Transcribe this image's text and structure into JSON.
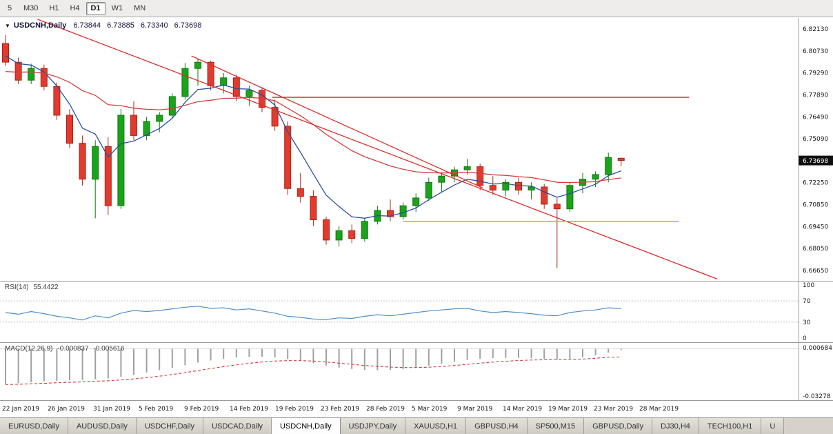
{
  "toolbar": {
    "timeframes": [
      {
        "label": "5"
      },
      {
        "label": "M30"
      },
      {
        "label": "H1"
      },
      {
        "label": "H4"
      },
      {
        "label": "D1",
        "active": true
      },
      {
        "label": "W1"
      },
      {
        "label": "MN"
      }
    ]
  },
  "chart": {
    "symbol_label": "USDCNH,Daily",
    "quote": {
      "open": "6.73844",
      "high": "6.73885",
      "low": "6.73340",
      "close": "6.73698"
    },
    "current_price": "6.73698",
    "price_scale": [
      "6.82130",
      "6.80730",
      "6.79290",
      "6.77890",
      "6.76490",
      "6.75090",
      "6.73690",
      "6.72250",
      "6.70850",
      "6.69450",
      "6.68050",
      "6.66650"
    ]
  },
  "rsi": {
    "label": "RSI(14)",
    "value": "55.4422",
    "levels": [
      "100",
      "70",
      "30",
      "0"
    ]
  },
  "macd": {
    "label": "MACD(12,26,9)",
    "value_macd": "-0.000837",
    "value_signal": "-0.005616",
    "scale_top": "0.000684",
    "scale_bottom": "-0.03278"
  },
  "tabbar": {
    "tabs": [
      {
        "label": "EURUSD,Daily"
      },
      {
        "label": "AUDUSD,Daily"
      },
      {
        "label": "USDCHF,Daily"
      },
      {
        "label": "USDCAD,Daily"
      },
      {
        "label": "USDCNH,Daily",
        "active": true
      },
      {
        "label": "USDJPY,Daily"
      },
      {
        "label": "XAUUSD,H1"
      },
      {
        "label": "GBPUSD,H4"
      },
      {
        "label": "SP500,M15"
      },
      {
        "label": "GBPUSD,Daily"
      },
      {
        "label": "DJ30,H4"
      },
      {
        "label": "TECH100,H1"
      },
      {
        "label": "U"
      }
    ]
  },
  "chart_data": {
    "type": "candlestick",
    "symbol": "USDCNH",
    "timeframe": "Daily",
    "y_range": [
      6.6665,
      6.8213
    ],
    "x_labels": [
      "22 Jan 2019",
      "26 Jan 2019",
      "31 Jan 2019",
      "5 Feb 2019",
      "9 Feb 2019",
      "14 Feb 2019",
      "19 Feb 2019",
      "23 Feb 2019",
      "28 Feb 2019",
      "5 Mar 2019",
      "9 Mar 2019",
      "14 Mar 2019",
      "19 Mar 2019",
      "23 Mar 2019",
      "28 Mar 2019"
    ],
    "candles": [
      [
        6.812,
        6.8175,
        6.7975,
        6.8
      ],
      [
        6.8,
        6.803,
        6.786,
        6.7885
      ],
      [
        6.7885,
        6.799,
        6.786,
        6.796
      ],
      [
        6.796,
        6.7985,
        6.782,
        6.7845
      ],
      [
        6.7845,
        6.787,
        6.763,
        6.766
      ],
      [
        6.766,
        6.77,
        6.745,
        6.748
      ],
      [
        6.748,
        6.753,
        6.721,
        6.725
      ],
      [
        6.725,
        6.75,
        6.7,
        6.746
      ],
      [
        6.746,
        6.752,
        6.702,
        6.708
      ],
      [
        6.708,
        6.77,
        6.706,
        6.766
      ],
      [
        6.766,
        6.775,
        6.75,
        6.753
      ],
      [
        6.753,
        6.765,
        6.75,
        6.762
      ],
      [
        6.762,
        6.768,
        6.755,
        6.766
      ],
      [
        6.766,
        6.78,
        6.764,
        6.778
      ],
      [
        6.778,
        6.7995,
        6.776,
        6.796
      ],
      [
        6.796,
        6.802,
        6.785,
        6.8
      ],
      [
        6.8,
        6.801,
        6.782,
        6.785
      ],
      [
        6.785,
        6.793,
        6.78,
        6.79
      ],
      [
        6.79,
        6.792,
        6.775,
        6.778
      ],
      [
        6.778,
        6.785,
        6.772,
        6.782
      ],
      [
        6.782,
        6.784,
        6.768,
        6.771
      ],
      [
        6.771,
        6.776,
        6.756,
        6.759
      ],
      [
        6.759,
        6.762,
        6.715,
        6.719
      ],
      [
        6.719,
        6.729,
        6.71,
        6.714
      ],
      [
        6.714,
        6.718,
        6.695,
        6.699
      ],
      [
        6.699,
        6.701,
        6.683,
        6.686
      ],
      [
        6.686,
        6.695,
        6.682,
        6.692
      ],
      [
        6.692,
        6.696,
        6.684,
        6.687
      ],
      [
        6.687,
        6.7,
        6.685,
        6.698
      ],
      [
        6.698,
        6.708,
        6.696,
        6.705
      ],
      [
        6.705,
        6.712,
        6.698,
        6.701
      ],
      [
        6.701,
        6.71,
        6.699,
        6.708
      ],
      [
        6.708,
        6.716,
        6.704,
        6.713
      ],
      [
        6.713,
        6.726,
        6.711,
        6.723
      ],
      [
        6.723,
        6.729,
        6.717,
        6.727
      ],
      [
        6.727,
        6.733,
        6.723,
        6.731
      ],
      [
        6.731,
        6.738,
        6.728,
        6.733
      ],
      [
        6.733,
        6.735,
        6.718,
        6.721
      ],
      [
        6.721,
        6.727,
        6.715,
        6.718
      ],
      [
        6.718,
        6.725,
        6.714,
        6.723
      ],
      [
        6.723,
        6.726,
        6.715,
        6.718
      ],
      [
        6.718,
        6.723,
        6.712,
        6.72
      ],
      [
        6.72,
        6.722,
        6.706,
        6.709
      ],
      [
        6.709,
        6.713,
        6.668,
        6.706
      ],
      [
        6.706,
        6.723,
        6.704,
        6.721
      ],
      [
        6.721,
        6.729,
        6.716,
        6.725
      ],
      [
        6.725,
        6.73,
        6.72,
        6.728
      ],
      [
        6.728,
        6.742,
        6.723,
        6.739
      ],
      [
        6.73844,
        6.73885,
        6.7334,
        6.73698
      ]
    ],
    "rsi": [
      48,
      45,
      50,
      46,
      41,
      38,
      34,
      42,
      38,
      47,
      52,
      50,
      52,
      55,
      58,
      60,
      56,
      57,
      53,
      55,
      51,
      47,
      41,
      39,
      36,
      35,
      38,
      37,
      41,
      44,
      42,
      45,
      48,
      51,
      53,
      55,
      56,
      51,
      48,
      50,
      48,
      46,
      43,
      42,
      48,
      51,
      53,
      57,
      55.44
    ],
    "macd": [
      -0.024,
      -0.0235,
      -0.0228,
      -0.0222,
      -0.0218,
      -0.0215,
      -0.0213,
      -0.0208,
      -0.0202,
      -0.0192,
      -0.0178,
      -0.0162,
      -0.0146,
      -0.013,
      -0.0112,
      -0.0094,
      -0.008,
      -0.0068,
      -0.006,
      -0.0055,
      -0.0054,
      -0.0058,
      -0.0068,
      -0.0082,
      -0.0098,
      -0.0114,
      -0.0128,
      -0.0138,
      -0.0144,
      -0.0146,
      -0.0144,
      -0.0138,
      -0.0128,
      -0.0116,
      -0.0102,
      -0.0088,
      -0.0076,
      -0.0068,
      -0.0064,
      -0.0062,
      -0.0062,
      -0.0064,
      -0.0068,
      -0.0072,
      -0.0068,
      -0.0058,
      -0.0044,
      -0.0026,
      -0.000837
    ],
    "macd_signal": [
      -0.0244,
      -0.0242,
      -0.0239,
      -0.0236,
      -0.0232,
      -0.0229,
      -0.0226,
      -0.0222,
      -0.0218,
      -0.0213,
      -0.0206,
      -0.0197,
      -0.0187,
      -0.0176,
      -0.0163,
      -0.0149,
      -0.0135,
      -0.0122,
      -0.011,
      -0.0099,
      -0.009,
      -0.0084,
      -0.0081,
      -0.0081,
      -0.0084,
      -0.009,
      -0.0098,
      -0.0106,
      -0.0114,
      -0.012,
      -0.0125,
      -0.0128,
      -0.0128,
      -0.0126,
      -0.0121,
      -0.0114,
      -0.0106,
      -0.0098,
      -0.0091,
      -0.0085,
      -0.008,
      -0.0077,
      -0.0075,
      -0.0074,
      -0.0073,
      -0.007,
      -0.0065,
      -0.0057,
      -0.005616
    ],
    "trendlines": [
      {
        "bar1": 2.5,
        "price1": 6.8275,
        "bar2": 55.5,
        "price2": 6.661
      },
      {
        "bar1": 14.5,
        "price1": 6.804,
        "bar2": 37.2,
        "price2": 6.7195
      }
    ],
    "hlines": [
      {
        "price": 6.7775,
        "bar1": 20.8,
        "bar2": 53.3,
        "color": "#dd2a2a"
      },
      {
        "price": 6.698,
        "bar1": 31.0,
        "bar2": 52.5,
        "color": "#b5b52a"
      }
    ],
    "colors": {
      "bull": "#1ca31c",
      "bull_stroke": "#0c7a0c",
      "bear": "#e23b2e",
      "bear_stroke": "#a82417",
      "ma_fast": "#2a4ea0",
      "ma_slow": "#d23f3f",
      "rsi": "#4d8fcc",
      "macd_hist": "#a0a0a0",
      "macd_signal": "#cf3a3a",
      "trend": "#dd2a2a",
      "price_box_bg": "#101010"
    }
  }
}
